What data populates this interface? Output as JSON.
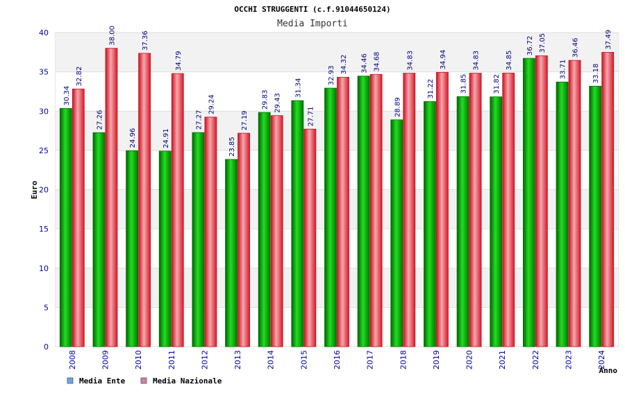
{
  "chart_data": {
    "type": "bar",
    "title": "OCCHI STRUGGENTI (c.f.91044650124)",
    "subtitle": "Media Importi",
    "ylabel": "Euro",
    "xlabel": "Anno",
    "ylim": [
      0,
      40
    ],
    "yticks": [
      "0",
      "5",
      "10",
      "15",
      "20",
      "25",
      "30",
      "35",
      "40"
    ],
    "grid": true,
    "legend_position": "bottom-left",
    "categories": [
      "2008",
      "2009",
      "2010",
      "2011",
      "2012",
      "2013",
      "2014",
      "2015",
      "2016",
      "2017",
      "2018",
      "2019",
      "2020",
      "2021",
      "2022",
      "2023",
      "2024"
    ],
    "series": [
      {
        "name": "Media Ente",
        "color": "#00a000",
        "legend_color": "#6aa6e8",
        "values": [
          30.34,
          27.26,
          24.96,
          24.91,
          27.27,
          23.85,
          29.83,
          31.34,
          32.93,
          34.46,
          28.89,
          31.22,
          31.85,
          31.82,
          36.72,
          33.71,
          33.18
        ],
        "labels": [
          "30.34",
          "27.26",
          "24.96",
          "24.91",
          "27.27",
          "23.85",
          "29.83",
          "31.34",
          "32.93",
          "34.46",
          "28.89",
          "31.22",
          "31.85",
          "31.82",
          "36.72",
          "33.71",
          "33.18"
        ]
      },
      {
        "name": "Media Nazionale",
        "color": "#e02030",
        "legend_color": "#d47fb0",
        "values": [
          32.82,
          38.0,
          37.36,
          34.79,
          29.24,
          27.19,
          29.43,
          27.71,
          34.32,
          34.68,
          34.83,
          34.94,
          34.83,
          34.85,
          37.05,
          36.46,
          37.49
        ],
        "labels": [
          "32.82",
          "38.00",
          "37.36",
          "34.79",
          "29.24",
          "27.19",
          "29.43",
          "27.71",
          "34.32",
          "34.68",
          "34.83",
          "34.94",
          "34.83",
          "34.85",
          "37.05",
          "36.46",
          "37.49"
        ]
      }
    ]
  }
}
